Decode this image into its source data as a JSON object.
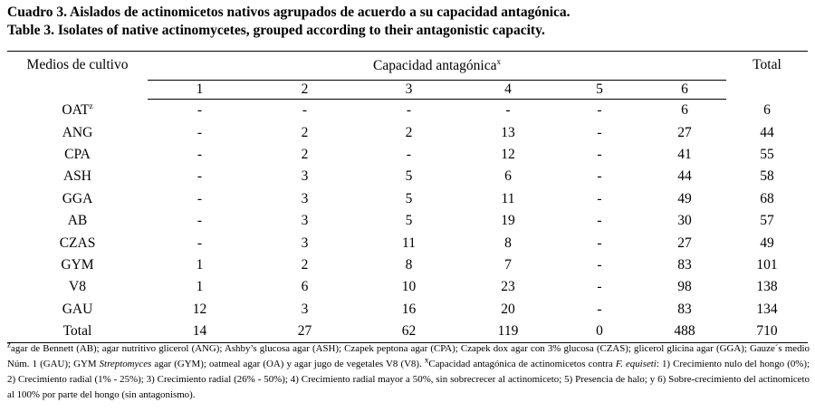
{
  "title_es": "Cuadro 3. Aislados de actinomicetos nativos agrupados de acuerdo a su capacidad antagónica.",
  "title_en": "Table 3. Isolates of native actinomycetes, grouped according to their antagonistic capacity.",
  "table": {
    "header_medios": "Medios de cultivo",
    "header_capacidad": "Capacidad antagónica",
    "header_capacidad_mark": "x",
    "header_total": "Total",
    "cap_columns": [
      "1",
      "2",
      "3",
      "4",
      "5",
      "6"
    ],
    "rows": [
      {
        "medio": "OAT",
        "mark": "z",
        "values": [
          "-",
          "-",
          "-",
          "-",
          "-",
          "6"
        ],
        "total": "6"
      },
      {
        "medio": "ANG",
        "mark": "",
        "values": [
          "-",
          "2",
          "2",
          "13",
          "-",
          "27"
        ],
        "total": "44"
      },
      {
        "medio": "CPA",
        "mark": "",
        "values": [
          "-",
          "2",
          "-",
          "12",
          "-",
          "41"
        ],
        "total": "55"
      },
      {
        "medio": "ASH",
        "mark": "",
        "values": [
          "-",
          "3",
          "5",
          "6",
          "-",
          "44"
        ],
        "total": "58"
      },
      {
        "medio": "GGA",
        "mark": "",
        "values": [
          "-",
          "3",
          "5",
          "11",
          "-",
          "49"
        ],
        "total": "68"
      },
      {
        "medio": "AB",
        "mark": "",
        "values": [
          "-",
          "3",
          "5",
          "19",
          "-",
          "30"
        ],
        "total": "57"
      },
      {
        "medio": "CZAS",
        "mark": "",
        "values": [
          "-",
          "3",
          "11",
          "8",
          "-",
          "27"
        ],
        "total": "49"
      },
      {
        "medio": "GYM",
        "mark": "",
        "values": [
          "1",
          "2",
          "8",
          "7",
          "-",
          "83"
        ],
        "total": "101"
      },
      {
        "medio": "V8",
        "mark": "",
        "values": [
          "1",
          "6",
          "10",
          "23",
          "-",
          "98"
        ],
        "total": "138"
      },
      {
        "medio": "GAU",
        "mark": "",
        "values": [
          "12",
          "3",
          "16",
          "20",
          "-",
          "83"
        ],
        "total": "134"
      }
    ],
    "total_row": {
      "label": "Total",
      "values": [
        "14",
        "27",
        "62",
        "119",
        "0",
        "488"
      ],
      "total": "710"
    }
  },
  "footnote": {
    "z_mark": "z",
    "part1": "agar de Bennett (AB); agar nutritivo glicerol (ANG); Ashby’s glucosa agar (ASH); Czapek peptona agar (CPA); Czapek dox agar con 3% glucosa (CZAS); glicerol glicina agar (GGA); Gauze´s medio Núm. 1 (GAU); GYM ",
    "italic1": "Streptomyces",
    "part2": " agar (GYM); oatmeal agar (OA) y agar jugo de vegetales V8 (V8). ",
    "x_mark": "x",
    "part3": "Capacidad antagónica de actinomicetos contra ",
    "italic2": "F. equiseti",
    "part4": ": 1) Crecimiento nulo del hongo (0%); 2) Crecimiento radial (1% - 25%); 3) Crecimiento radial (26% - 50%); 4) Crecimiento radial mayor a 50%, sin sobrecrecer al actinomiceto; 5) Presencia de halo; y 6) Sobre-crecimiento del actinomiceto al 100% por parte del hongo (sin antagonismo)."
  }
}
